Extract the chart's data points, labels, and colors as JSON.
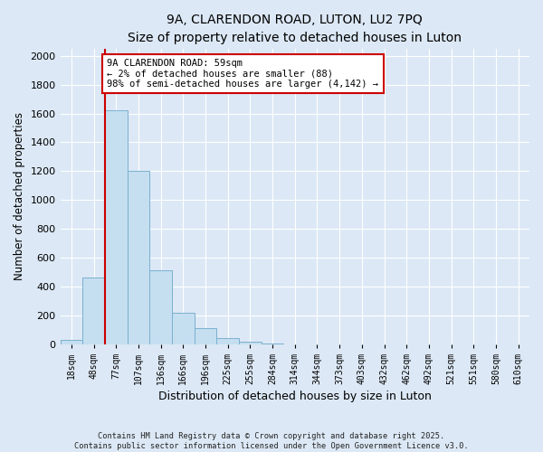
{
  "title_line1": "9A, CLARENDON ROAD, LUTON, LU2 7PQ",
  "title_line2": "Size of property relative to detached houses in Luton",
  "xlabel": "Distribution of detached houses by size in Luton",
  "ylabel": "Number of detached properties",
  "bar_values": [
    30,
    460,
    1620,
    1200,
    510,
    220,
    110,
    45,
    20,
    8,
    0,
    0,
    0,
    0,
    0,
    0,
    0,
    0,
    0,
    0,
    0
  ],
  "bar_labels": [
    "18sqm",
    "48sqm",
    "77sqm",
    "107sqm",
    "136sqm",
    "166sqm",
    "196sqm",
    "225sqm",
    "255sqm",
    "284sqm",
    "314sqm",
    "344sqm",
    "373sqm",
    "403sqm",
    "432sqm",
    "462sqm",
    "492sqm",
    "521sqm",
    "551sqm",
    "580sqm",
    "610sqm"
  ],
  "bar_color": "#c5dff0",
  "bar_edge_color": "#7ab0d0",
  "vline_color": "#cc0000",
  "annotation_box_text": "9A CLARENDON ROAD: 59sqm\n← 2% of detached houses are smaller (88)\n98% of semi-detached houses are larger (4,142) →",
  "annotation_box_edge_color": "#cc0000",
  "annotation_box_facecolor": "white",
  "ylim": [
    0,
    2050
  ],
  "yticks": [
    0,
    200,
    400,
    600,
    800,
    1000,
    1200,
    1400,
    1600,
    1800,
    2000
  ],
  "footnote_line1": "Contains HM Land Registry data © Crown copyright and database right 2025.",
  "footnote_line2": "Contains public sector information licensed under the Open Government Licence v3.0.",
  "bg_color": "#dce8f5",
  "plot_bg_color": "#dce8f5"
}
